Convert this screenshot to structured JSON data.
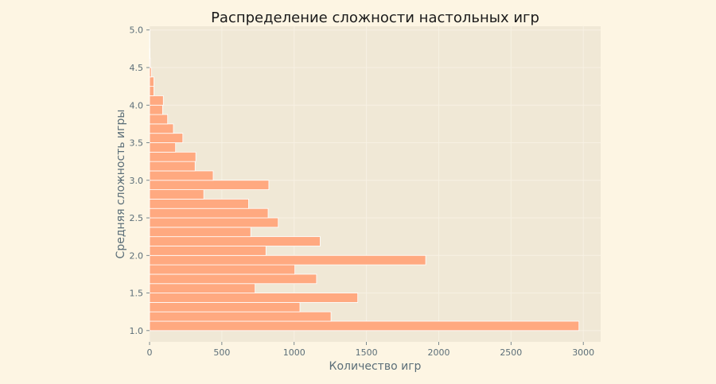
{
  "chart_data": {
    "type": "bar",
    "orientation": "horizontal",
    "title": "Распределение сложности настольных игр",
    "xlabel": "Количество игр",
    "ylabel": "Средняя сложность игры",
    "xlim": [
      0,
      3120
    ],
    "ylim": [
      0.85,
      5.05
    ],
    "x_ticks": [
      0,
      500,
      1000,
      1500,
      2000,
      2500,
      3000
    ],
    "y_ticks": [
      "1.0",
      "1.5",
      "2.0",
      "2.5",
      "3.0",
      "3.5",
      "4.0",
      "4.5",
      "5.0"
    ],
    "bin_width": 0.125,
    "bin_start": [
      1.0,
      1.125,
      1.25,
      1.375,
      1.5,
      1.625,
      1.75,
      1.875,
      2.0,
      2.125,
      2.25,
      2.375,
      2.5,
      2.625,
      2.75,
      2.875,
      3.0,
      3.125,
      3.25,
      3.375,
      3.5,
      3.625,
      3.75,
      3.875,
      4.0,
      4.125,
      4.25,
      4.375,
      4.5,
      4.625,
      4.75,
      4.875
    ],
    "values": [
      2970,
      1255,
      1040,
      1440,
      730,
      1155,
      1005,
      1910,
      805,
      1180,
      700,
      890,
      820,
      685,
      375,
      825,
      440,
      315,
      320,
      180,
      230,
      165,
      125,
      90,
      95,
      30,
      30,
      12,
      5,
      3,
      2,
      2
    ],
    "grid": true,
    "colors": {
      "bar": "#ffa980",
      "bar_edge": "#ffffff",
      "plot_background": "#f0e8d6",
      "figure_background": "#fdf5e3",
      "grid": "#f7f1e3"
    }
  }
}
